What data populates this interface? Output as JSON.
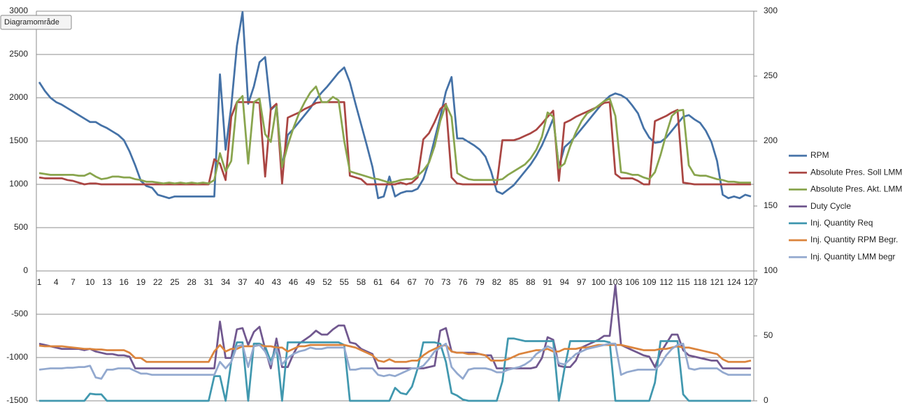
{
  "chart_data": {
    "type": "line",
    "tooltip": "Diagramområde",
    "categories": [
      1,
      null,
      null,
      4,
      null,
      null,
      7,
      null,
      null,
      10,
      null,
      null,
      13,
      null,
      null,
      16,
      null,
      null,
      19,
      null,
      null,
      22,
      null,
      null,
      25,
      null,
      null,
      28,
      null,
      null,
      31,
      null,
      null,
      34,
      null,
      null,
      37,
      null,
      null,
      40,
      null,
      null,
      43,
      null,
      null,
      46,
      null,
      null,
      49,
      null,
      null,
      52,
      null,
      null,
      55,
      null,
      null,
      58,
      null,
      null,
      61,
      null,
      null,
      64,
      null,
      null,
      67,
      null,
      null,
      70,
      null,
      null,
      73,
      null,
      null,
      76,
      null,
      null,
      79,
      null,
      null,
      82,
      null,
      null,
      85,
      null,
      null,
      88,
      null,
      null,
      91,
      null,
      null,
      94,
      null,
      null,
      97,
      null,
      null,
      100,
      null,
      null,
      103,
      null,
      null,
      106,
      null,
      null,
      109,
      null,
      null,
      112,
      null,
      null,
      115,
      null,
      null,
      118,
      null,
      null,
      121,
      null,
      null,
      124,
      null,
      null,
      127
    ],
    "ylim": [
      -1500,
      3000
    ],
    "yticks": [
      -1500,
      -1000,
      -500,
      0,
      500,
      1000,
      1500,
      2000,
      2500,
      3000
    ],
    "y2lim": [
      0,
      300
    ],
    "y2ticks": [
      0,
      50,
      100,
      150,
      200,
      250,
      300
    ],
    "grid": true,
    "legend": "right",
    "series": [
      {
        "name": "RPM",
        "color": "#4572a7",
        "values": [
          2180,
          2080,
          2000,
          1950,
          1920,
          1880,
          1840,
          1800,
          1760,
          1720,
          1720,
          1680,
          1650,
          1610,
          1570,
          1510,
          1380,
          1220,
          1040,
          980,
          960,
          880,
          860,
          840,
          860,
          860,
          860,
          860,
          860,
          860,
          860,
          860,
          2270,
          1400,
          1900,
          2600,
          2990,
          1930,
          2130,
          2410,
          2470,
          1860,
          1920,
          1200,
          1570,
          1640,
          1720,
          1800,
          1880,
          1980,
          2060,
          2130,
          2210,
          2290,
          2350,
          2180,
          1930,
          1690,
          1450,
          1200,
          840,
          860,
          1090,
          860,
          900,
          920,
          920,
          950,
          1060,
          1260,
          1520,
          1780,
          2070,
          2240,
          1530,
          1530,
          1490,
          1450,
          1400,
          1320,
          1150,
          920,
          890,
          940,
          990,
          1070,
          1150,
          1230,
          1330,
          1450,
          1600,
          1760,
          1200,
          1430,
          1490,
          1560,
          1640,
          1720,
          1800,
          1880,
          1960,
          2020,
          2050,
          2030,
          1990,
          1910,
          1820,
          1650,
          1540,
          1480,
          1490,
          1540,
          1620,
          1700,
          1780,
          1800,
          1750,
          1710,
          1620,
          1490,
          1270,
          880,
          840,
          860,
          840,
          880,
          860
        ]
      },
      {
        "name": "Absolute Pres. Soll LMM",
        "color": "#aa4643",
        "values": [
          1080,
          1070,
          1070,
          1070,
          1070,
          1050,
          1040,
          1020,
          1000,
          1010,
          1010,
          1000,
          1000,
          1000,
          1000,
          1000,
          1000,
          1000,
          1000,
          1000,
          1000,
          1000,
          1000,
          1000,
          1000,
          1000,
          1000,
          1000,
          1000,
          1000,
          1000,
          1290,
          1240,
          1050,
          1780,
          1950,
          1950,
          1950,
          1950,
          1940,
          1090,
          1870,
          1930,
          1010,
          1770,
          1800,
          1830,
          1870,
          1900,
          1940,
          1950,
          1950,
          1950,
          1950,
          1950,
          1100,
          1080,
          1060,
          1000,
          1000,
          1000,
          1000,
          1000,
          1000,
          1020,
          1000,
          1020,
          1080,
          1520,
          1590,
          1720,
          1870,
          1930,
          1080,
          1010,
          1000,
          1000,
          1000,
          1000,
          1000,
          1000,
          1000,
          1510,
          1510,
          1510,
          1530,
          1560,
          1590,
          1630,
          1700,
          1780,
          1850,
          1040,
          1710,
          1740,
          1780,
          1810,
          1840,
          1870,
          1900,
          1940,
          1950,
          1120,
          1070,
          1070,
          1070,
          1040,
          1000,
          1000,
          1730,
          1760,
          1790,
          1830,
          1860,
          1020,
          1010,
          1000,
          1000,
          1000,
          1000,
          1000,
          1000,
          1000,
          1000,
          1000,
          1000,
          1000
        ]
      },
      {
        "name": "Absolute Pres. Akt. LMM",
        "color": "#89a54e",
        "values": [
          1130,
          1120,
          1110,
          1110,
          1110,
          1110,
          1110,
          1100,
          1100,
          1130,
          1090,
          1060,
          1070,
          1090,
          1090,
          1080,
          1080,
          1060,
          1050,
          1030,
          1030,
          1020,
          1010,
          1020,
          1010,
          1020,
          1010,
          1020,
          1010,
          1020,
          1010,
          1050,
          1360,
          1150,
          1270,
          1950,
          2020,
          1240,
          1950,
          1990,
          1580,
          1490,
          1900,
          1200,
          1450,
          1650,
          1820,
          1950,
          2060,
          2130,
          1950,
          1950,
          2010,
          1970,
          1500,
          1150,
          1130,
          1110,
          1090,
          1070,
          1060,
          1040,
          1020,
          1030,
          1050,
          1060,
          1060,
          1100,
          1160,
          1250,
          1440,
          1730,
          1920,
          1780,
          1130,
          1090,
          1060,
          1050,
          1050,
          1050,
          1050,
          1050,
          1060,
          1110,
          1150,
          1190,
          1230,
          1300,
          1400,
          1550,
          1830,
          1780,
          1190,
          1240,
          1440,
          1600,
          1730,
          1820,
          1860,
          1910,
          1960,
          1990,
          1790,
          1140,
          1130,
          1110,
          1110,
          1080,
          1060,
          1140,
          1340,
          1580,
          1790,
          1850,
          1860,
          1220,
          1110,
          1100,
          1100,
          1080,
          1060,
          1050,
          1030,
          1030,
          1020,
          1020,
          1020
        ]
      },
      {
        "name": "Duty Cycle",
        "color": "#71588f",
        "axis": "y2",
        "values": [
          44,
          43,
          42,
          41,
          40,
          40,
          40,
          40,
          39,
          40,
          38,
          37,
          36,
          36,
          35,
          35,
          34,
          25,
          25,
          25,
          25,
          25,
          25,
          25,
          25,
          25,
          25,
          25,
          25,
          25,
          25,
          25,
          61,
          33,
          33,
          55,
          56,
          43,
          53,
          57,
          40,
          25,
          48,
          26,
          26,
          36,
          44,
          47,
          50,
          54,
          51,
          51,
          55,
          58,
          58,
          45,
          44,
          40,
          38,
          36,
          25,
          25,
          25,
          25,
          25,
          25,
          25,
          25,
          25,
          26,
          27,
          54,
          56,
          38,
          37,
          37,
          37,
          37,
          36,
          35,
          35,
          25,
          25,
          25,
          25,
          25,
          25,
          25,
          26,
          33,
          49,
          47,
          27,
          26,
          26,
          31,
          41,
          43,
          45,
          47,
          50,
          50,
          89,
          43,
          41,
          39,
          37,
          35,
          34,
          26,
          37,
          44,
          51,
          51,
          39,
          35,
          34,
          33,
          32,
          31,
          31,
          25,
          25,
          25,
          25,
          25,
          25
        ]
      },
      {
        "name": "Inj. Quantity Req",
        "color": "#4198af",
        "axis": "y2",
        "values": [
          0,
          0,
          0,
          0,
          0,
          0,
          0,
          0,
          0,
          5.5,
          5,
          5,
          0,
          0,
          0,
          0,
          0,
          0,
          0,
          0,
          0,
          0,
          0,
          0,
          0,
          0,
          0,
          0,
          0,
          0,
          0,
          19,
          19,
          0,
          30,
          45,
          45,
          0,
          44,
          44,
          42,
          30,
          42,
          0,
          45,
          45,
          45,
          45,
          45,
          45,
          45,
          45,
          45,
          45,
          43,
          0,
          0,
          0,
          0,
          0,
          0,
          0,
          0,
          10,
          6,
          5,
          11,
          25,
          45,
          45,
          45,
          44,
          30,
          6,
          4,
          1,
          0,
          0,
          0,
          0,
          0,
          0,
          15,
          48,
          48,
          47,
          46,
          46,
          46,
          46,
          46,
          46,
          0,
          25,
          46,
          46,
          46,
          46,
          46,
          46,
          46,
          45,
          0,
          0,
          0,
          0,
          0,
          0,
          0,
          14,
          46,
          46,
          46,
          46,
          5,
          0,
          0,
          0,
          0,
          0,
          0,
          0,
          0,
          0,
          0,
          0,
          0
        ]
      },
      {
        "name": "Inj. Quantity RPM Begr.",
        "color": "#db843d",
        "axis": "y2",
        "values": [
          42.5,
          42,
          42,
          42,
          42,
          41.5,
          41,
          40.5,
          40,
          40,
          39.5,
          39.5,
          39,
          39,
          39,
          39,
          37,
          33,
          33,
          30,
          30,
          30,
          30,
          30,
          30,
          30,
          30,
          30,
          30,
          30,
          30,
          38,
          43,
          38,
          40,
          40,
          42,
          42,
          42,
          43,
          42,
          42,
          41,
          41,
          38,
          40,
          42,
          42,
          43,
          43,
          43,
          43,
          43,
          43,
          43,
          42,
          41,
          39,
          37,
          35,
          31,
          30,
          32,
          30,
          30,
          30,
          31,
          31,
          35,
          38,
          40,
          42,
          43,
          38,
          37,
          37,
          36,
          36,
          36,
          35,
          31,
          31,
          31,
          32,
          34,
          36,
          37,
          38,
          39,
          39,
          40,
          38,
          38,
          40,
          40,
          40,
          41,
          41,
          42,
          43,
          43,
          43,
          43,
          43,
          42,
          41,
          40,
          39,
          39,
          39,
          40,
          40,
          41,
          42,
          41,
          41,
          40,
          39,
          38,
          37,
          36,
          32,
          30,
          30,
          30,
          30,
          31
        ]
      },
      {
        "name": "Inj. Quantity LMM begr",
        "color": "#93a9cf",
        "axis": "y2",
        "values": [
          24,
          24.5,
          25,
          25,
          25,
          25.5,
          25.5,
          26,
          26,
          27,
          18,
          17,
          24,
          24,
          25,
          25,
          25,
          23,
          21,
          21,
          20,
          20,
          20,
          20,
          20,
          20,
          20,
          20,
          20,
          20,
          20,
          20,
          30,
          25,
          30,
          42,
          43,
          26,
          42,
          43,
          38,
          28,
          40,
          28,
          33,
          36,
          38,
          39,
          41,
          40,
          40,
          41,
          41,
          41,
          41,
          24,
          24,
          25,
          25,
          25,
          20,
          19,
          20,
          19,
          21,
          23,
          25,
          25,
          27,
          32,
          38,
          41,
          44,
          26,
          21,
          17,
          24,
          25,
          25,
          25,
          24,
          22,
          22,
          24,
          25,
          26,
          28,
          31,
          36,
          39,
          42,
          40,
          29,
          28,
          32,
          36,
          38,
          40,
          41,
          42,
          43,
          44,
          44,
          20,
          22,
          23,
          24,
          24,
          24,
          24,
          28,
          35,
          40,
          43,
          44,
          25,
          24,
          25,
          25,
          25,
          25,
          22,
          20,
          20,
          20,
          20,
          20
        ]
      }
    ]
  }
}
